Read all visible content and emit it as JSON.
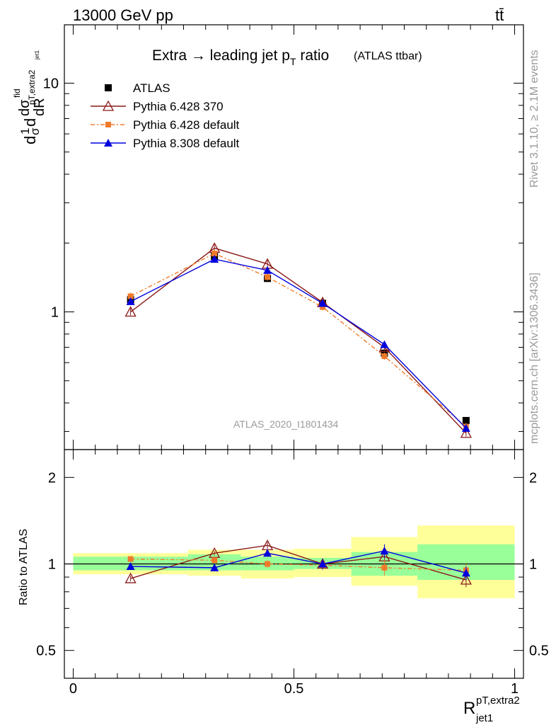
{
  "header": {
    "left": "13000 GeV pp",
    "right": "tt̄"
  },
  "side": {
    "rivet": "Rivet 3.1.10, ≥ 2.1M events",
    "mcplots": "mcplots.cern.ch [arXiv:1306.3436]"
  },
  "chart_data": {
    "type": "line",
    "title": "Extra → leading jet p",
    "title_sub": "T",
    "title_tail": " ratio",
    "title_note": "(ATLAS ttbar)",
    "watermark": "ATLAS_2020_I1801434",
    "ylabel_main": "d¹/σ dσ^fid / dR^pT,extra2_jet1",
    "ylabel_main_parts": {
      "d1": "d",
      "sig_num": "1",
      "sig_den": "σ",
      "d2": "d",
      "dsig": "dσ",
      "fid": "fid",
      "sub": "pT,extra2",
      "subsub": "jet1",
      "dR": "dR"
    },
    "ylabel_ratio": "Ratio to ATLAS",
    "xlabel_main": "R",
    "xlabel_sup": "pT,extra2",
    "xlabel_sub": "jet1",
    "log_y": true,
    "ylim_main": [
      0.25,
      18
    ],
    "ylim_ratio": [
      0.4,
      2.5
    ],
    "xlim": [
      -0.02,
      1.02
    ],
    "y_ticks_main": [
      "1",
      "10"
    ],
    "y_ticks_ratio": [
      "0.5",
      "1",
      "2"
    ],
    "x_ticks": [
      "0",
      "0.5",
      "1"
    ],
    "legend_position": "top-left",
    "bins": [
      [
        0.0,
        0.26
      ],
      [
        0.26,
        0.38
      ],
      [
        0.38,
        0.5
      ],
      [
        0.5,
        0.63
      ],
      [
        0.63,
        0.78
      ],
      [
        0.78,
        1.0
      ]
    ],
    "x": [
      0.13,
      0.32,
      0.44,
      0.565,
      0.705,
      0.89
    ],
    "series": [
      {
        "name": "ATLAS",
        "color": "#000000",
        "marker": "square",
        "values": [
          1.13,
          1.75,
          1.4,
          1.09,
          0.66,
          0.335
        ]
      },
      {
        "name": "Pythia 6.428 370",
        "color": "#8b1a1a",
        "marker": "open-triangle",
        "values": [
          1.0,
          1.9,
          1.62,
          1.1,
          0.7,
          0.295
        ]
      },
      {
        "name": "Pythia 6.428 default",
        "color": "#f07a2a",
        "marker": "small-square",
        "values": [
          1.17,
          1.8,
          1.42,
          1.05,
          0.64,
          0.315
        ]
      },
      {
        "name": "Pythia 8.308 default",
        "color": "#0000dd",
        "marker": "triangle",
        "values": [
          1.11,
          1.7,
          1.52,
          1.09,
          0.72,
          0.31
        ]
      }
    ],
    "ratio_series": [
      {
        "name": "Pythia 6.428 370",
        "values": [
          0.89,
          1.09,
          1.16,
          1.0,
          1.06,
          0.88
        ]
      },
      {
        "name": "Pythia 6.428 default",
        "values": [
          1.04,
          1.03,
          1.0,
          0.99,
          0.97,
          0.95
        ]
      },
      {
        "name": "Pythia 8.308 default",
        "values": [
          0.98,
          0.97,
          1.09,
          1.0,
          1.11,
          0.93
        ]
      }
    ],
    "ratio_errors": [
      0.02,
      0.02,
      0.03,
      0.04,
      0.06,
      0.05
    ],
    "band_inner": [
      [
        0.95,
        1.06
      ],
      [
        0.95,
        1.08
      ],
      [
        0.95,
        1.06
      ],
      [
        0.96,
        1.05
      ],
      [
        0.91,
        1.1
      ],
      [
        0.88,
        1.17
      ]
    ],
    "band_outer": [
      [
        0.92,
        1.09
      ],
      [
        0.91,
        1.12
      ],
      [
        0.89,
        1.12
      ],
      [
        0.9,
        1.13
      ],
      [
        0.84,
        1.24
      ],
      [
        0.76,
        1.36
      ]
    ],
    "colors": {
      "band_inner": "#99ff99",
      "band_outer": "#ffff99"
    }
  }
}
